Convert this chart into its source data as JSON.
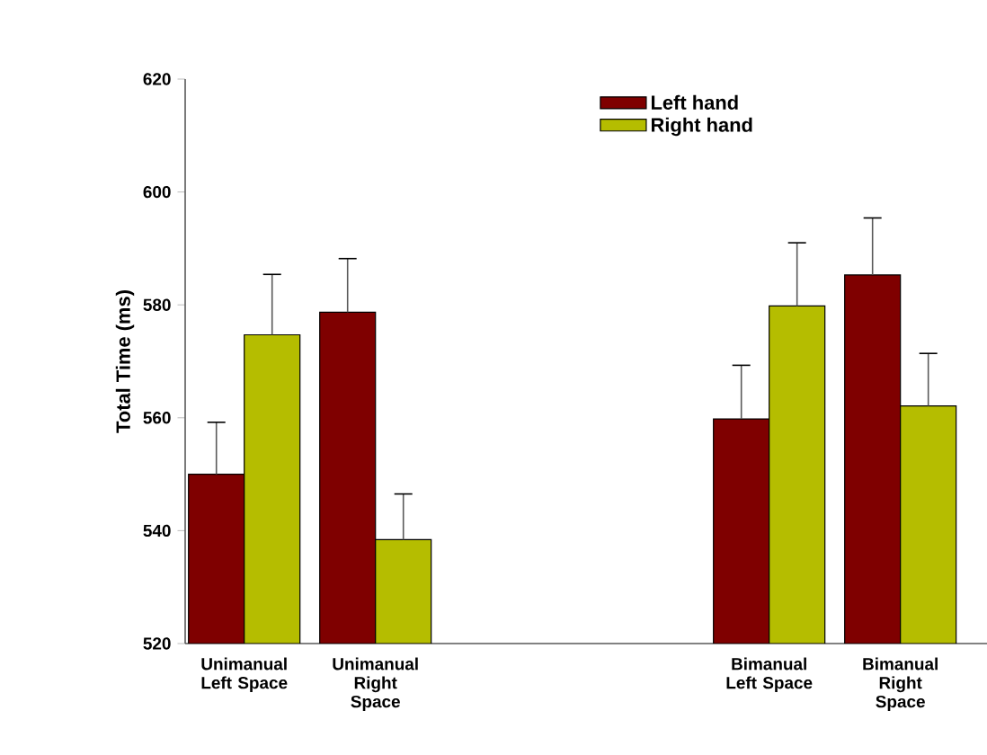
{
  "chart_data": {
    "type": "bar",
    "ylabel": "Total Time (ms)",
    "categories": [
      "Unimanual Left Space",
      "Unimanual Right Space",
      null,
      null,
      "Bimanual Left Space",
      "Bimanual Right Space"
    ],
    "series": [
      {
        "name": "Left hand",
        "color": "#7f0000",
        "values": [
          550,
          578.7,
          null,
          null,
          559.8,
          585.3
        ],
        "errors": [
          9.2,
          9.5,
          null,
          null,
          9.5,
          10.1
        ]
      },
      {
        "name": "Right hand",
        "color": "#b5bd00",
        "values": [
          574.7,
          538.4,
          null,
          null,
          579.8,
          562.1
        ],
        "errors": [
          10.7,
          8.1,
          null,
          null,
          11.2,
          9.3
        ]
      }
    ],
    "ylim": [
      520,
      620
    ],
    "yticks": [
      520,
      540,
      560,
      580,
      600,
      620
    ],
    "legend": "top right",
    "grid": false
  }
}
